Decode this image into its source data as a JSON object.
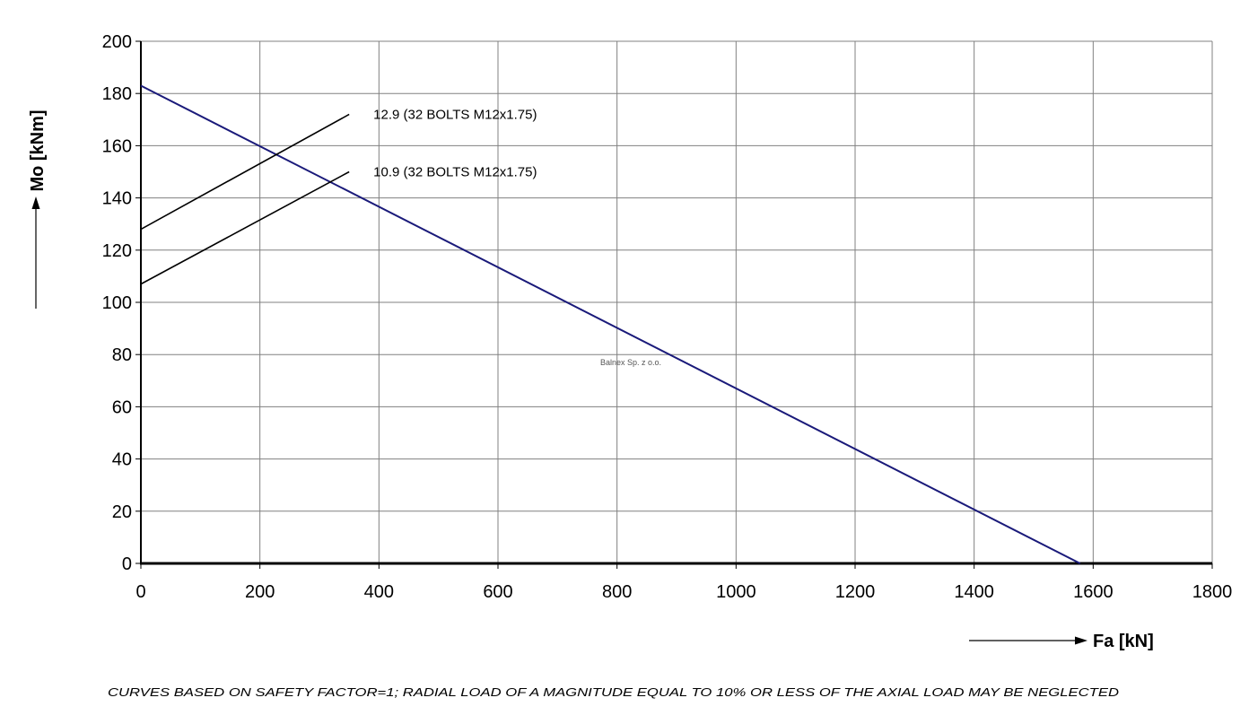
{
  "chart_data": {
    "type": "line",
    "xlabel": "Fa [kN]",
    "ylabel": "Mo [kNm]",
    "xlim": [
      0,
      1800
    ],
    "ylim": [
      0,
      200
    ],
    "x_ticks": [
      "0",
      "200",
      "400",
      "600",
      "800",
      "1000",
      "1200",
      "1400",
      "1600",
      "1800"
    ],
    "y_ticks": [
      "0",
      "20",
      "40",
      "60",
      "80",
      "100",
      "120",
      "140",
      "160",
      "180",
      "200"
    ],
    "grid": true,
    "legend": "none",
    "series": [
      {
        "name": "",
        "color": "#1a1a7a",
        "x": [
          0,
          1578
        ],
        "y": [
          183,
          0
        ]
      },
      {
        "name": "12.9 (32 BOLTS M12x1.75)",
        "color": "#000000",
        "x": [
          0,
          350
        ],
        "y": [
          128,
          172
        ]
      },
      {
        "name": "10.9 (32 BOLTS M12x1.75)",
        "color": "#000000",
        "x": [
          0,
          350
        ],
        "y": [
          107,
          150
        ]
      }
    ],
    "watermark": "Balnex Sp. z o.o.",
    "footnote": "CURVES BASED ON SAFETY FACTOR=1; RADIAL LOAD OF A MAGNITUDE EQUAL TO 10% OR LESS OF THE AXIAL LOAD MAY BE NEGLECTED"
  }
}
